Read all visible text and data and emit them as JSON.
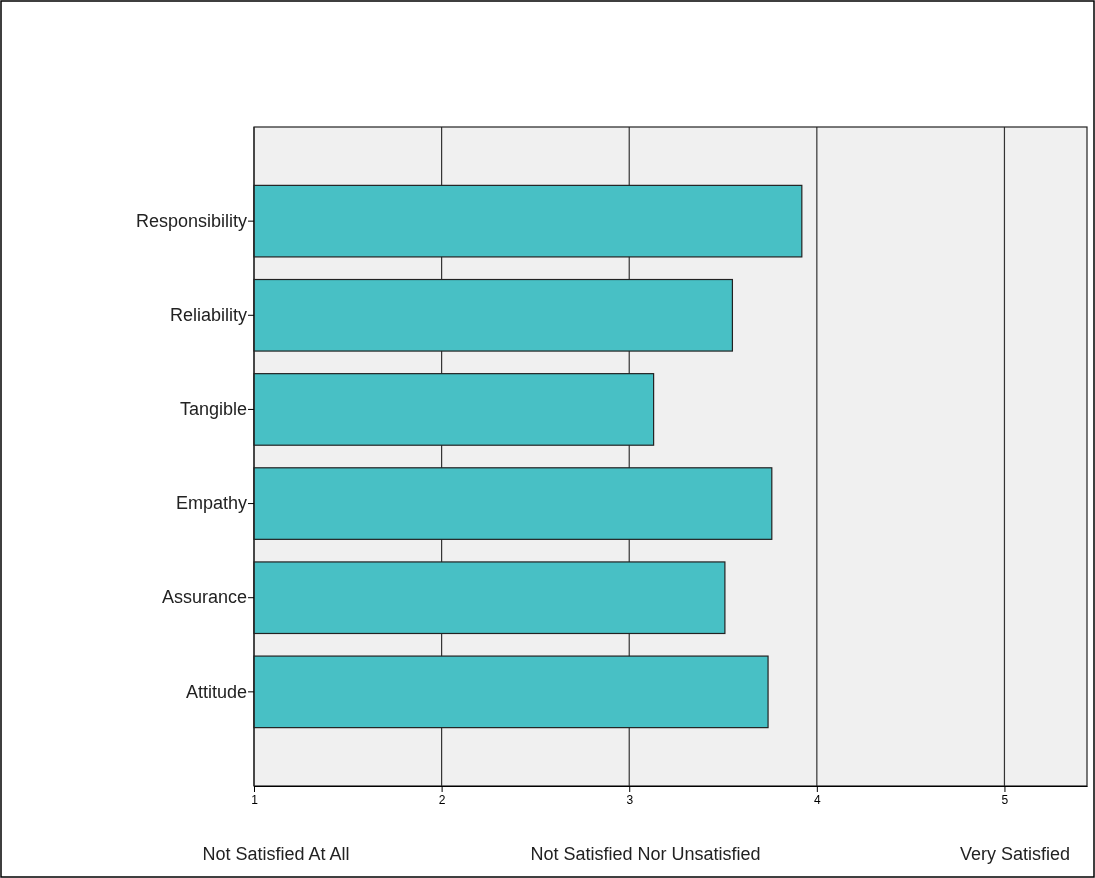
{
  "chart_data": {
    "type": "bar",
    "orientation": "horizontal",
    "categories": [
      "Responsibility",
      "Reliability",
      "Tangible",
      "Empathy",
      "Assurance",
      "Attitude"
    ],
    "values": [
      3.92,
      3.55,
      3.13,
      3.76,
      3.51,
      3.74
    ],
    "color": "#48c0c5",
    "xlim": [
      1,
      5.44
    ],
    "xticks": [
      1,
      2,
      3,
      4,
      5
    ],
    "grid": "x",
    "annotations": [
      "Not Satisfied At All",
      "Not Satisfied Nor Unsatisfied",
      "Very Satisfied"
    ]
  }
}
